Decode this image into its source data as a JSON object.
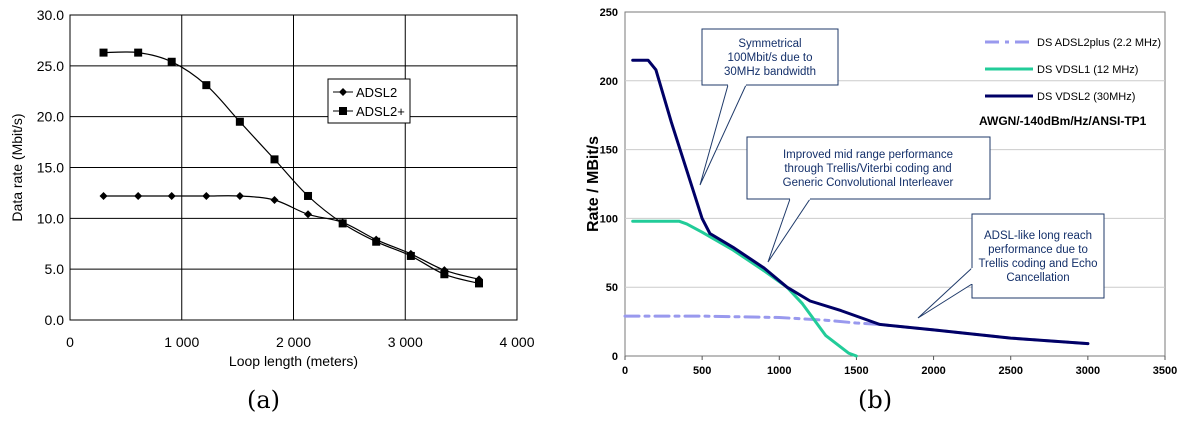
{
  "chart_data": [
    {
      "panel_label": "(a)",
      "type": "line",
      "xlabel": "Loop length (meters)",
      "ylabel": "Data rate (Mbit/s)",
      "xlim": [
        0,
        4000
      ],
      "ylim": [
        0,
        30
      ],
      "x_ticks": [
        0,
        1000,
        2000,
        3000,
        4000
      ],
      "x_tick_labels": [
        "0",
        "1 000",
        "2 000",
        "3 000",
        "4 000"
      ],
      "y_ticks": [
        0,
        5,
        10,
        15,
        20,
        25,
        30
      ],
      "y_tick_labels": [
        "0.0",
        "5.0",
        "10.0",
        "15.0",
        "20.0",
        "25.0",
        "30.0"
      ],
      "grid": "vertical and horizontal",
      "legend_placement": "center-right",
      "series": [
        {
          "name": "ADSL2",
          "marker": "diamond",
          "color": "#000000",
          "x": [
            300,
            610,
            910,
            1220,
            1520,
            1830,
            2130,
            2440,
            2740,
            3050,
            3350,
            3660
          ],
          "y": [
            12.2,
            12.2,
            12.2,
            12.2,
            12.2,
            11.8,
            10.4,
            9.6,
            7.9,
            6.5,
            4.9,
            4.0
          ]
        },
        {
          "name": "ADSL2+",
          "marker": "square",
          "color": "#000000",
          "x": [
            300,
            610,
            910,
            1220,
            1520,
            1830,
            2130,
            2440,
            2740,
            3050,
            3350,
            3660
          ],
          "y": [
            26.3,
            26.3,
            25.4,
            23.1,
            19.5,
            15.8,
            12.2,
            9.5,
            7.7,
            6.3,
            4.5,
            3.6
          ]
        }
      ]
    },
    {
      "panel_label": "(b)",
      "type": "line",
      "ylabel": "Rate / MBit/s",
      "xlim": [
        0,
        3500
      ],
      "ylim": [
        0,
        250
      ],
      "x_ticks": [
        0,
        500,
        1000,
        1500,
        2000,
        2500,
        3000,
        3500
      ],
      "x_tick_labels": [
        "0",
        "500",
        "1000",
        "1500",
        "2000",
        "2500",
        "3000",
        "3500"
      ],
      "y_ticks": [
        0,
        50,
        100,
        150,
        200,
        250
      ],
      "y_tick_labels": [
        "0",
        "50",
        "100",
        "150",
        "200",
        "250"
      ],
      "grid": "horizontal",
      "legend_placement": "top-right",
      "condition_label": "AWGN/-140dBm/Hz/ANSI-TP1",
      "series": [
        {
          "name": "DS ADSL2plus (2.2 MHz)",
          "color": "#9999ee",
          "style": "dash-dot",
          "x": [
            0,
            500,
            1000,
            1300,
            1500,
            1650,
            2000,
            2500,
            3000
          ],
          "y": [
            29,
            29,
            28,
            26,
            24,
            23,
            19,
            13,
            9
          ]
        },
        {
          "name": "DS VDSL1 (12 MHz)",
          "color": "#22cc99",
          "style": "solid",
          "x": [
            50,
            200,
            350,
            400,
            500,
            700,
            900,
            1050,
            1150,
            1300,
            1450,
            1500
          ],
          "y": [
            98,
            98,
            98,
            96,
            90,
            77,
            62,
            50,
            38,
            15,
            2,
            0
          ]
        },
        {
          "name": "DS VDSL2 (30MHz)",
          "color": "#000066",
          "style": "solid",
          "x": [
            50,
            150,
            200,
            300,
            400,
            500,
            550,
            700,
            900,
            1050,
            1200,
            1400,
            1650,
            2000,
            2500,
            3000
          ],
          "y": [
            215,
            215,
            208,
            170,
            135,
            100,
            89,
            79,
            64,
            50,
            40,
            33,
            23,
            19,
            13,
            9
          ]
        }
      ],
      "annotations": [
        {
          "lines": [
            "Symmetrical",
            "100Mbit/s due to",
            "30MHz bandwidth"
          ]
        },
        {
          "lines": [
            "Improved mid range performance",
            "through Trellis/Viterbi coding and",
            "Generic Convolutional Interleaver"
          ]
        },
        {
          "lines": [
            "ADSL-like long reach",
            "performance due to",
            "Trellis coding and Echo",
            "Cancellation"
          ]
        }
      ]
    }
  ]
}
